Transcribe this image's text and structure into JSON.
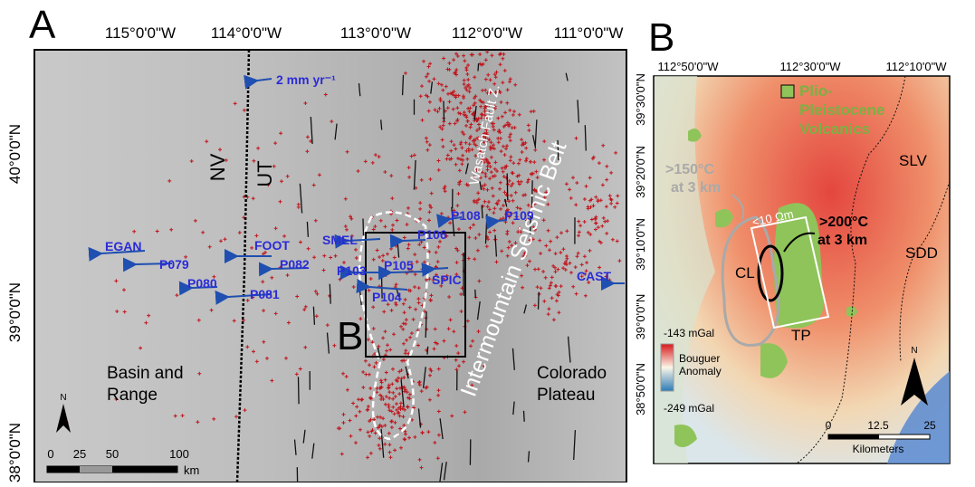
{
  "panel_a": {
    "label": "A",
    "lon_labels": [
      "115°0'0\"W",
      "114°0'0\"W",
      "113°0'0\"W",
      "112°0'0\"W",
      "111°0'0\"W"
    ],
    "lat_labels": [
      "40°0'0\"N",
      "39°0'0\"N",
      "38°0'0\"N"
    ],
    "velocity_label": "2 mm yr⁻¹",
    "state_labels": [
      "NV",
      "UT"
    ],
    "fault_label": "Wasatch Fault Z.",
    "belt_label": "Intermountain Seismic Belt",
    "stations": [
      "EGAN",
      "FOOT",
      "P079",
      "P082",
      "P080",
      "P081",
      "SMEL",
      "P106",
      "P108",
      "P109",
      "P103",
      "P105",
      "SPIC",
      "P104",
      "CAST"
    ],
    "box_label": "B",
    "region_labels": {
      "basin": [
        "Basin and",
        "Range"
      ],
      "plateau": [
        "Colorado",
        "Plateau"
      ]
    },
    "north": "N",
    "scale": {
      "ticks": [
        "0",
        "25",
        "50",
        "100"
      ],
      "unit": "km"
    }
  },
  "panel_b": {
    "label": "B",
    "lon_labels": [
      "112°50'0\"W",
      "112°30'0\"W",
      "112°10'0\"W"
    ],
    "lat_labels": [
      "39°30'0\"N",
      "39°20'0\"N",
      "39°10'0\"N",
      "39°0'0\"N",
      "38°50'0\"N"
    ],
    "legend_volcanics": [
      "Plio-",
      "Pleistocene",
      "Volcanics"
    ],
    "temp_150": [
      ">150°C",
      "at 3 km"
    ],
    "resistivity": "<10 Ωm",
    "temp_200": [
      ">200°C",
      "at 3 km"
    ],
    "places": [
      "CL",
      "TP",
      "SLV",
      "SDD"
    ],
    "bouguer_max": "-143 mGal",
    "bouguer_title": [
      "Bouguer",
      "Anomaly"
    ],
    "bouguer_min": "-249 mGal",
    "north": "N",
    "scale": {
      "ticks": [
        "0",
        "12.5",
        "25"
      ],
      "unit": "Kilometers"
    }
  }
}
